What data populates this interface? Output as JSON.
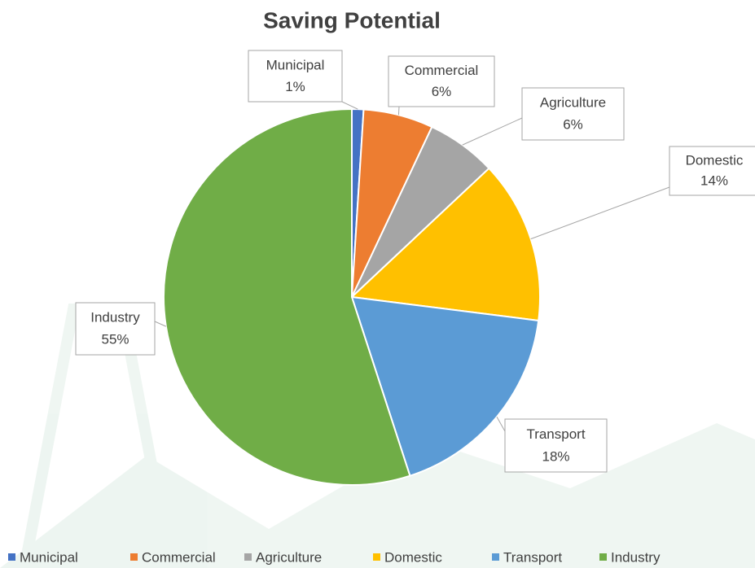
{
  "chart_data": {
    "type": "pie",
    "title": "Saving Potential",
    "categories": [
      "Municipal",
      "Commercial",
      "Agriculture",
      "Domestic",
      "Transport",
      "Industry"
    ],
    "values": [
      1,
      6,
      6,
      14,
      18,
      55
    ],
    "value_labels": [
      "1%",
      "6%",
      "6%",
      "14%",
      "18%",
      "55%"
    ],
    "colors": [
      "#4472c4",
      "#ed7d31",
      "#a5a5a5",
      "#ffc000",
      "#5b9bd5",
      "#70ad47"
    ],
    "legend": "bottom"
  }
}
